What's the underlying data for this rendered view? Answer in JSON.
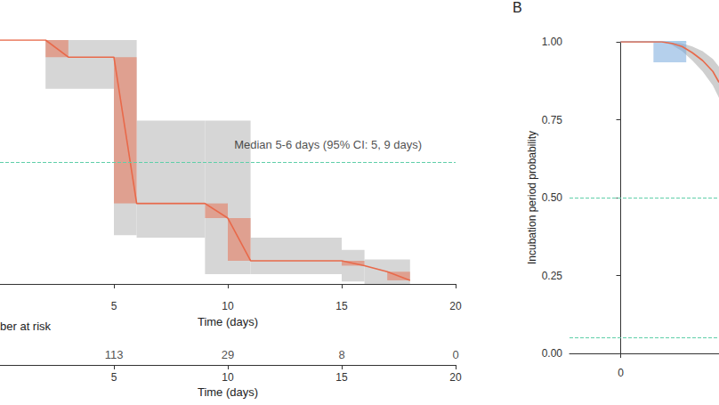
{
  "chart_data": [
    {
      "type": "line",
      "x": [
        0,
        2,
        3,
        5,
        6,
        9,
        10,
        11,
        15,
        16,
        17,
        18
      ],
      "values": [
        1,
        1,
        0.93,
        0.93,
        0.33,
        0.33,
        0.27,
        0.095,
        0.095,
        0.075,
        0.05,
        0.015
      ],
      "color": "#e8694a",
      "ci_bands": [
        [
          2,
          5,
          0.8,
          1.0
        ],
        [
          5,
          6,
          0.2,
          1.0
        ],
        [
          6,
          9,
          0.19,
          0.67
        ],
        [
          9,
          11,
          0.04,
          0.67
        ],
        [
          11,
          15,
          0.04,
          0.19
        ],
        [
          15,
          16,
          0.01,
          0.14
        ],
        [
          16,
          18,
          0.0,
          0.1
        ]
      ],
      "change_bands": [
        [
          2,
          3,
          0.93,
          1.0
        ],
        [
          5,
          6,
          0.33,
          0.93
        ],
        [
          9,
          10,
          0.27,
          0.33
        ],
        [
          10,
          11,
          0.095,
          0.27
        ],
        [
          15,
          16,
          0.075,
          0.095
        ],
        [
          17,
          18,
          0.015,
          0.05
        ]
      ],
      "median": 0.5,
      "annotation": "Median 5-6 days (95% CI: 5, 9 days)",
      "annotation_x": 14.4,
      "annotation_y": 0.57,
      "xlabel": "Time (days)",
      "xlim": [
        0,
        20
      ],
      "xticks": [
        5,
        10,
        15,
        20
      ],
      "ylim": [
        0,
        1
      ],
      "tick_labels": "x",
      "risk_table": {
        "label": "ber at risk",
        "x": [
          5,
          10,
          15,
          20
        ],
        "values": [
          113,
          29,
          8,
          0
        ],
        "xlabel": "Time (days)",
        "xticks": [
          5,
          10,
          15,
          20
        ]
      }
    },
    {
      "type": "line",
      "panel_label": "B",
      "ylabel": "Incubation period probability",
      "x": [
        0,
        2,
        2.5,
        3,
        3.5,
        4,
        4.5,
        4.8
      ],
      "values": [
        1,
        1,
        0.995,
        0.985,
        0.965,
        0.94,
        0.905,
        0.87
      ],
      "ci_lower": [
        1,
        1,
        0.99,
        0.97,
        0.94,
        0.905,
        0.86,
        0.82
      ],
      "ci_upper": [
        1,
        1,
        1,
        0.995,
        0.985,
        0.97,
        0.945,
        0.92
      ],
      "color": "#e8694a",
      "empirical": {
        "x": [
          0,
          3.2
        ],
        "values": [
          1,
          1
        ],
        "color": "#a8cdea",
        "band": [
          [
            1.6,
            3.2,
            0.934,
            1.0
          ]
        ]
      },
      "hlines": [
        0.5,
        0.05
      ],
      "xlim": [
        -2.5,
        4.8
      ],
      "xticks": [
        0
      ],
      "ylim": [
        0,
        1
      ],
      "yticks": [
        {
          "value": 0,
          "label": "0.00"
        },
        {
          "value": 0.25,
          "label": "0.25"
        },
        {
          "value": 0.5,
          "label": "0.50"
        },
        {
          "value": 0.75,
          "label": "0.75"
        },
        {
          "value": 1,
          "label": "1.00"
        }
      ]
    }
  ]
}
